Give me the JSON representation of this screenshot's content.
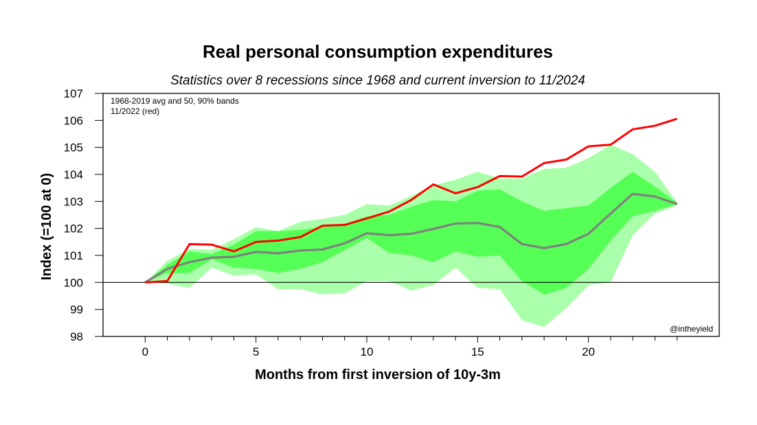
{
  "chart_data": {
    "type": "line",
    "title": "Real personal consumption expenditures",
    "subtitle": "Statistics over 8 recessions since 1968 and current inversion to 11/2024",
    "xlabel": "Months from first inversion of 10y-3m",
    "ylabel": "Index (=100 at 0)",
    "xlim": [
      -1.9,
      25.9
    ],
    "ylim": [
      98,
      107
    ],
    "x_ticks": [
      0,
      5,
      10,
      15,
      20
    ],
    "x_minor_ticks": [
      1,
      2,
      3,
      4,
      6,
      7,
      8,
      9,
      11,
      12,
      13,
      14,
      16,
      17,
      18,
      19,
      21,
      22,
      23,
      24
    ],
    "y_ticks": [
      98,
      99,
      100,
      101,
      102,
      103,
      104,
      105,
      106,
      107
    ],
    "reference_line": 100,
    "grid": false,
    "annotations": [
      "1968-2019 avg and 50, 90% bands",
      "11/2022 (red)"
    ],
    "watermark": "@intheyield",
    "x": [
      0,
      1,
      2,
      3,
      4,
      5,
      6,
      7,
      8,
      9,
      10,
      11,
      12,
      13,
      14,
      15,
      16,
      17,
      18,
      19,
      20,
      21,
      22,
      23,
      24
    ],
    "bands": [
      {
        "name": "90% band",
        "color": "#aaffaa",
        "upper": [
          100.0,
          100.8,
          101.25,
          101.2,
          101.6,
          102.05,
          101.9,
          102.25,
          102.35,
          102.5,
          102.9,
          102.85,
          103.2,
          103.6,
          103.8,
          104.1,
          103.85,
          103.85,
          104.2,
          104.25,
          104.6,
          105.1,
          104.75,
          104.1,
          102.95
        ],
        "lower": [
          100.0,
          99.95,
          99.8,
          100.55,
          100.25,
          100.3,
          99.75,
          99.75,
          99.55,
          99.6,
          100.05,
          100.05,
          99.7,
          99.9,
          100.55,
          99.8,
          99.75,
          98.6,
          98.35,
          99.05,
          99.9,
          100.0,
          101.75,
          102.55,
          102.85
        ]
      },
      {
        "name": "50% band",
        "color": "#55ff55",
        "upper": [
          100.0,
          100.65,
          101.15,
          101.05,
          101.4,
          101.9,
          101.9,
          101.95,
          102.05,
          102.15,
          102.45,
          102.5,
          102.8,
          103.05,
          103.0,
          103.4,
          103.45,
          103.0,
          102.65,
          102.75,
          102.85,
          103.5,
          104.1,
          103.55,
          102.95
        ],
        "lower": [
          100.0,
          100.35,
          100.35,
          100.85,
          100.55,
          100.5,
          100.35,
          100.5,
          100.75,
          101.2,
          101.65,
          101.1,
          101.0,
          100.75,
          101.15,
          100.95,
          101.0,
          100.05,
          99.55,
          99.8,
          100.5,
          101.55,
          102.45,
          102.65,
          102.9
        ]
      }
    ],
    "series": [
      {
        "name": "1968-2019 avg",
        "color": "#808080",
        "values": [
          100.0,
          100.5,
          100.75,
          100.92,
          100.95,
          101.13,
          101.08,
          101.18,
          101.22,
          101.45,
          101.82,
          101.75,
          101.8,
          101.98,
          102.18,
          102.2,
          102.05,
          101.42,
          101.27,
          101.42,
          101.8,
          102.55,
          103.28,
          103.18,
          102.9
        ]
      },
      {
        "name": "11/2022 (red)",
        "color": "#ff0000",
        "values": [
          100.0,
          100.05,
          101.42,
          101.4,
          101.15,
          101.5,
          101.55,
          101.68,
          102.1,
          102.13,
          102.37,
          102.62,
          103.05,
          103.63,
          103.3,
          103.53,
          103.94,
          103.92,
          104.42,
          104.55,
          105.04,
          105.1,
          105.67,
          105.8,
          106.06
        ]
      }
    ]
  }
}
